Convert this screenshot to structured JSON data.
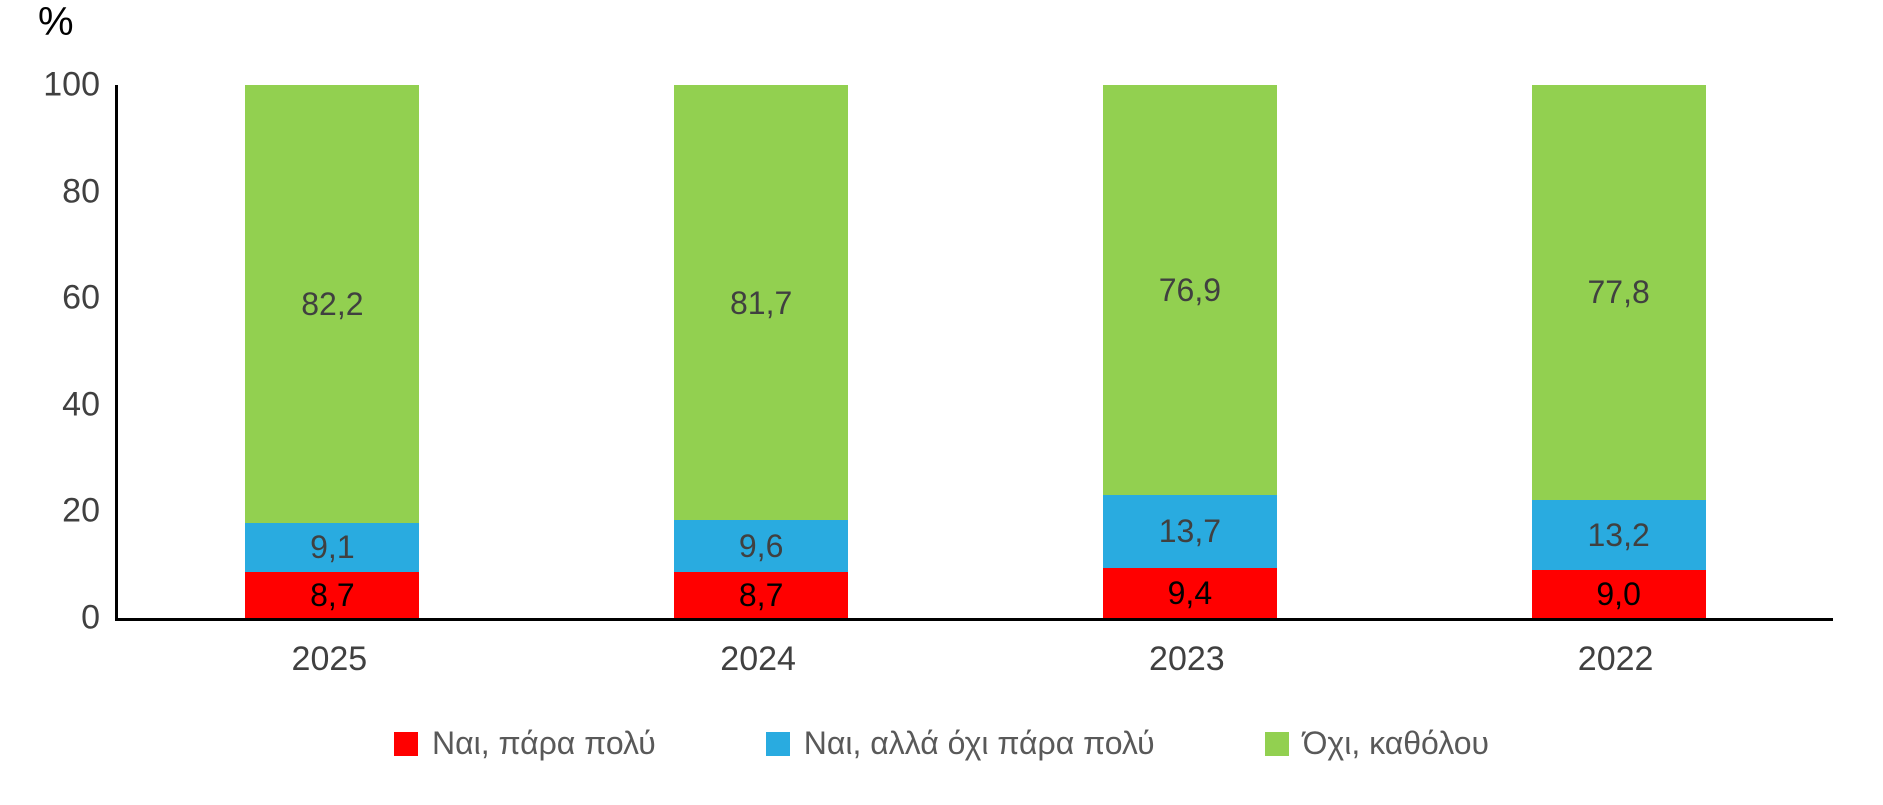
{
  "chart_data": {
    "type": "bar",
    "stacked": true,
    "title": "",
    "ylabel": "%",
    "xlabel": "",
    "ylim": [
      0,
      100
    ],
    "grid": false,
    "legend_position": "bottom",
    "y_ticks": [
      "0",
      "20",
      "40",
      "60",
      "80",
      "100"
    ],
    "categories": [
      "2025",
      "2024",
      "2023",
      "2022"
    ],
    "series": [
      {
        "name": "Ναι, πάρα πολύ",
        "color": "#FF0000",
        "label_color": "#000000",
        "values": [
          8.7,
          8.7,
          9.4,
          9.0
        ],
        "labels": [
          "8,7",
          "8,7",
          "9,4",
          "9,0"
        ]
      },
      {
        "name": "Ναι, αλλά όχι πάρα πολύ",
        "color": "#29ABE0",
        "label_color": "#404040",
        "values": [
          9.1,
          9.6,
          13.7,
          13.2
        ],
        "labels": [
          "9,1",
          "9,6",
          "13,7",
          "13,2"
        ]
      },
      {
        "name": "Όχι, καθόλου",
        "color": "#92D050",
        "label_color": "#404040",
        "values": [
          82.2,
          81.7,
          76.9,
          77.8
        ],
        "labels": [
          "82,2",
          "81,7",
          "76,9",
          "77,8"
        ]
      }
    ]
  }
}
